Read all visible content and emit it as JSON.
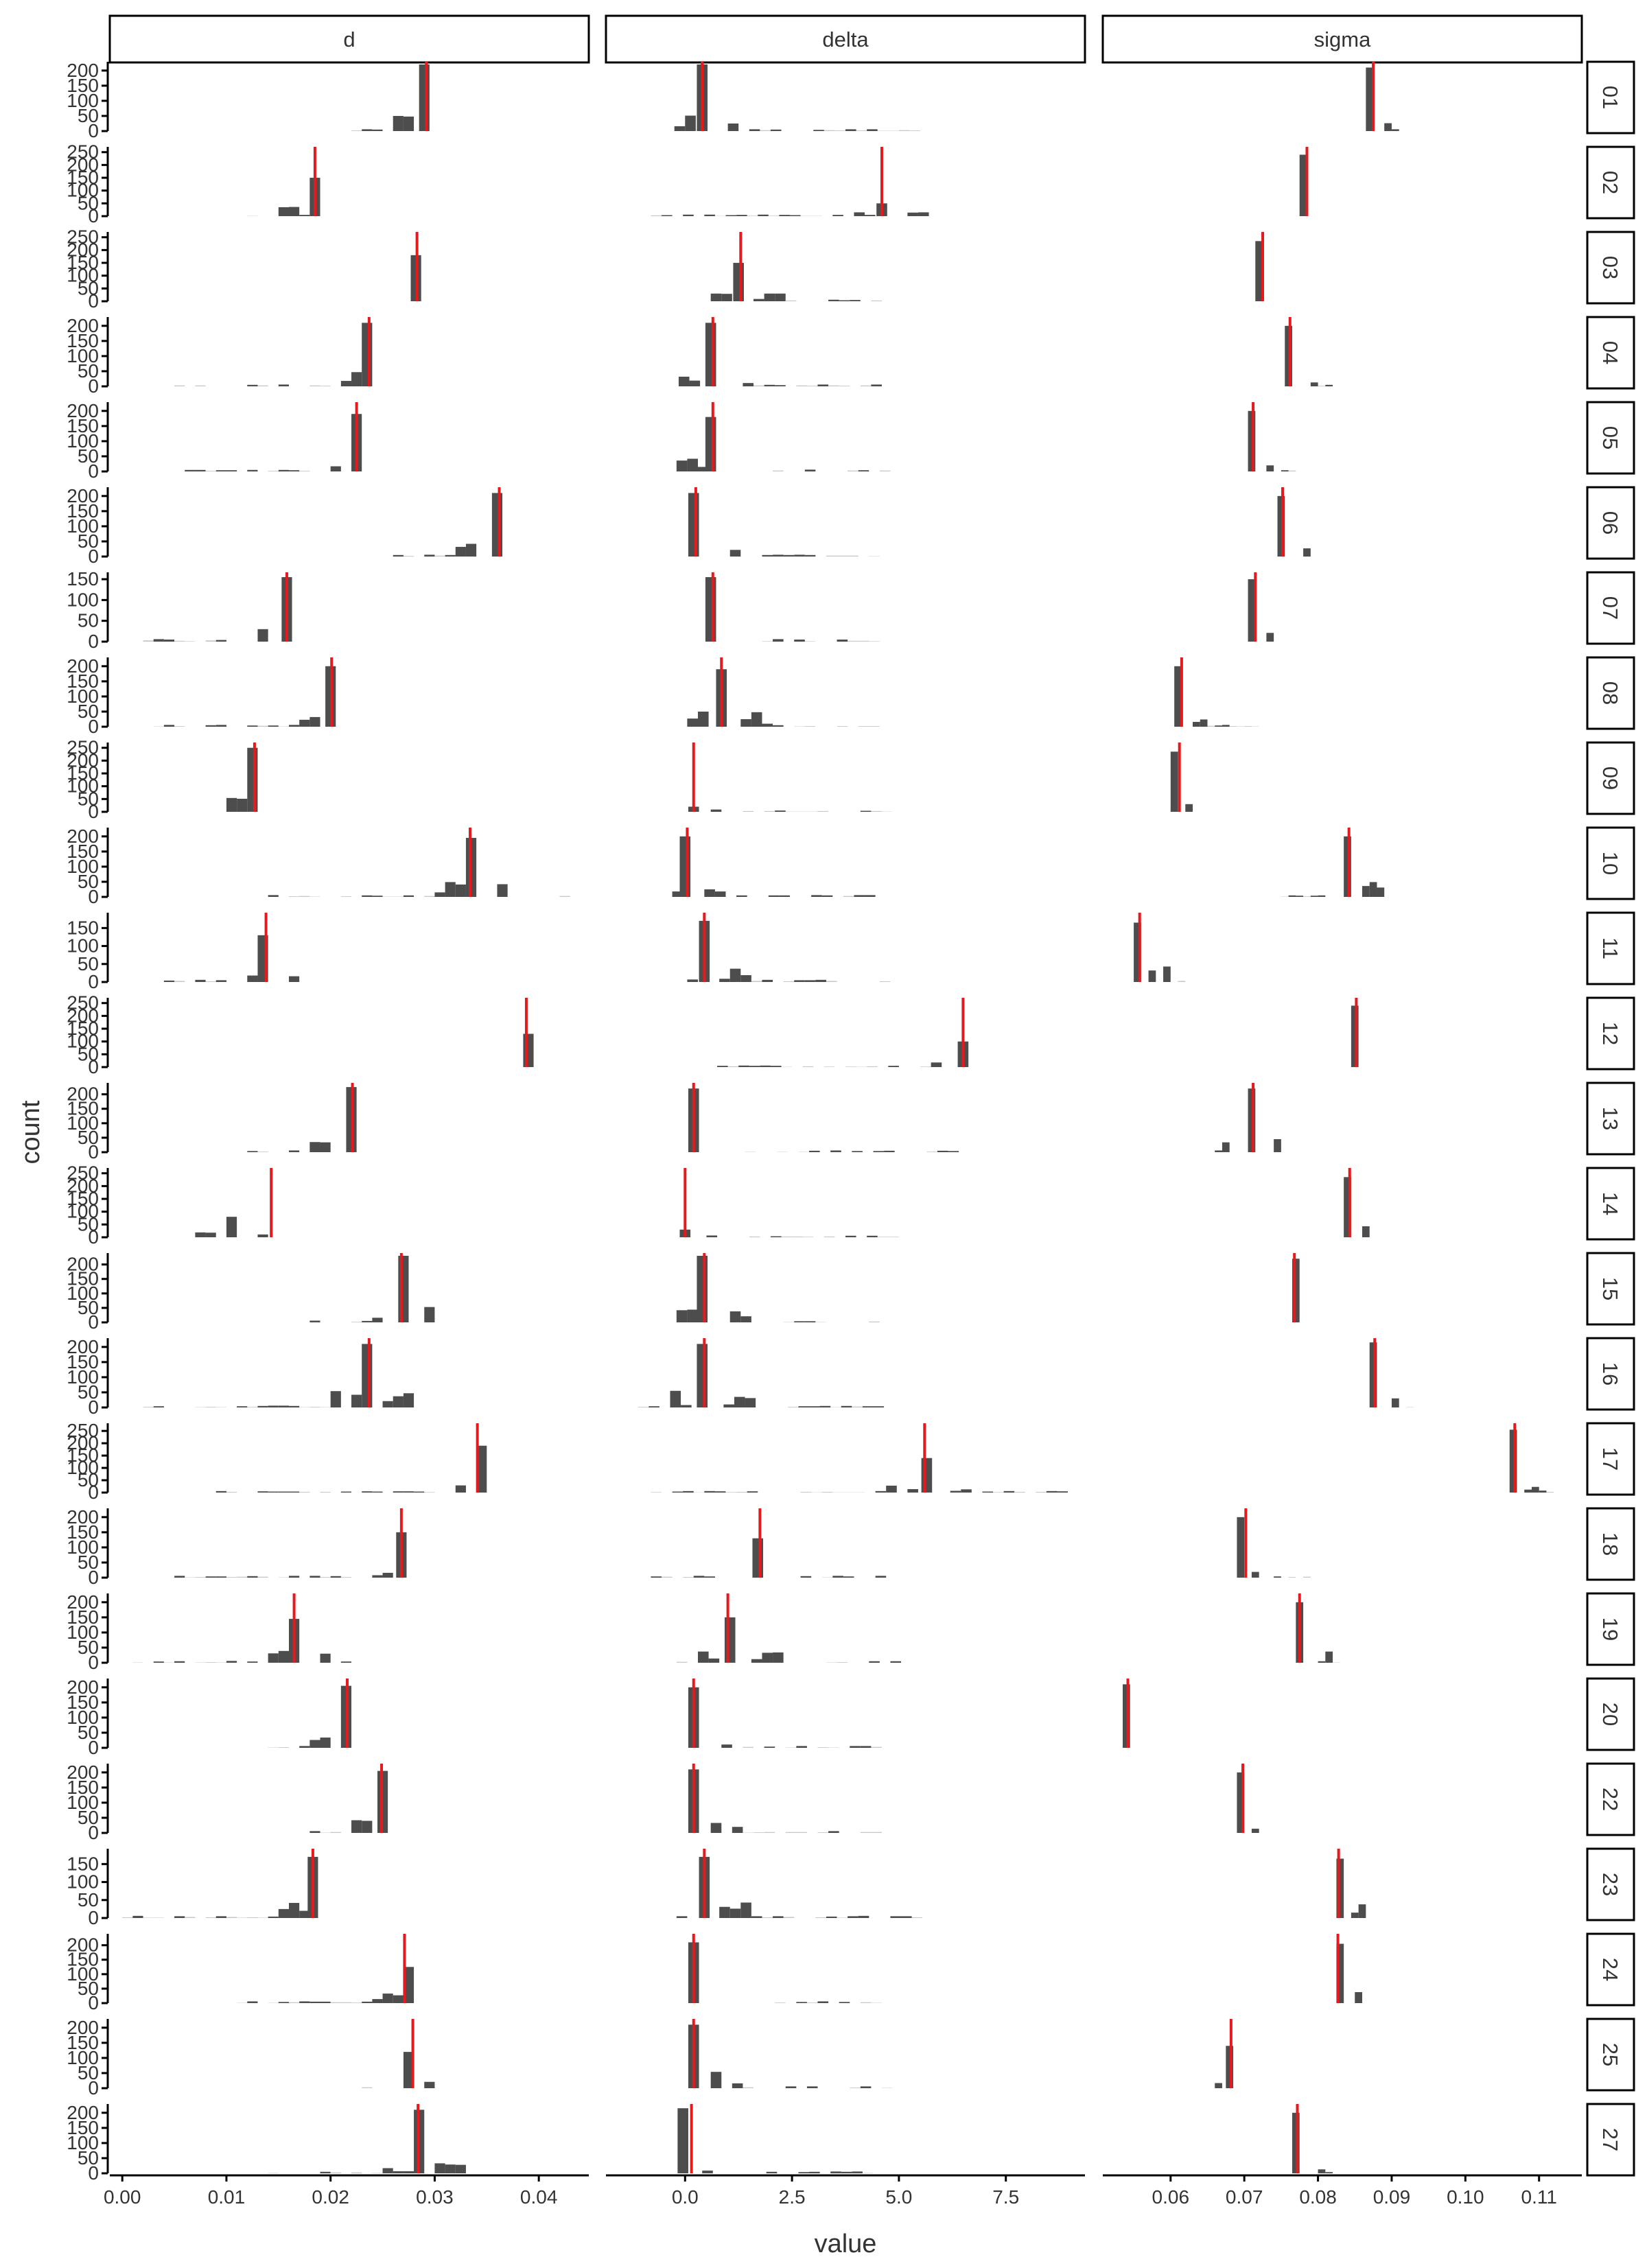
{
  "chart_data": {
    "type": "histogram-facet",
    "xlabel": "value",
    "ylabel": "count",
    "columns": [
      {
        "name": "d",
        "xlim": [
          -0.0012,
          0.0448
        ],
        "ticks": [
          0.0,
          0.01,
          0.02,
          0.03,
          0.04
        ],
        "tick_labels": [
          "0.00",
          "0.01",
          "0.02",
          "0.03",
          "0.04"
        ],
        "bin": 0.001
      },
      {
        "name": "delta",
        "xlim": [
          -1.85,
          9.35
        ],
        "ticks": [
          0.0,
          2.5,
          5.0,
          7.5
        ],
        "tick_labels": [
          "0.0",
          "2.5",
          "5.0",
          "7.5"
        ],
        "bin": 0.25
      },
      {
        "name": "sigma",
        "xlim": [
          0.0508,
          0.1158
        ],
        "ticks": [
          0.06,
          0.07,
          0.08,
          0.09,
          0.1,
          0.11
        ],
        "tick_labels": [
          "0.06",
          "0.07",
          "0.08",
          "0.09",
          "0.10",
          "0.11"
        ],
        "bin": 0.001
      }
    ],
    "colors": {
      "bars": "#4d4d4d",
      "reference_line": "#e41a1c",
      "strip_fill": "#ffffff",
      "strip_border": "#000000",
      "axis": "#000000"
    },
    "rows": [
      {
        "label": "01",
        "ymax": 220,
        "yticks": [
          0,
          50,
          100,
          150,
          200
        ],
        "ref": [
          0.0292,
          0.4,
          0.0875
        ],
        "peaks": [
          [
            0.029,
            220
          ],
          [
            0.4,
            220
          ],
          [
            0.087,
            210
          ]
        ],
        "spread": [
          [
            0.022,
            0.031
          ],
          [
            -0.5,
            5.5
          ],
          [
            0.086,
            0.093
          ]
        ]
      },
      {
        "label": "02",
        "ymax": 260,
        "yticks": [
          0,
          50,
          100,
          150,
          200,
          250
        ],
        "ref": [
          0.0185,
          4.6,
          0.0785
        ],
        "peaks": [
          [
            0.0185,
            150
          ],
          [
            4.6,
            50
          ],
          [
            0.078,
            240
          ]
        ],
        "spread": [
          [
            0.012,
            0.02
          ],
          [
            -0.8,
            6.0
          ],
          [
            0.077,
            0.08
          ]
        ]
      },
      {
        "label": "03",
        "ymax": 260,
        "yticks": [
          0,
          50,
          100,
          150,
          200,
          250
        ],
        "ref": [
          0.0283,
          1.3,
          0.0725
        ],
        "peaks": [
          [
            0.0282,
            180
          ],
          [
            1.25,
            150
          ],
          [
            0.072,
            235
          ]
        ],
        "spread": [
          [
            0.025,
            0.03
          ],
          [
            0.6,
            4.7
          ],
          [
            0.071,
            0.074
          ]
        ]
      },
      {
        "label": "04",
        "ymax": 220,
        "yticks": [
          0,
          50,
          100,
          150,
          200
        ],
        "ref": [
          0.0237,
          0.65,
          0.0762
        ],
        "peaks": [
          [
            0.0235,
            210
          ],
          [
            0.6,
            210
          ],
          [
            0.076,
            200
          ]
        ],
        "spread": [
          [
            0.004,
            0.025
          ],
          [
            -0.4,
            4.7
          ],
          [
            0.075,
            0.082
          ]
        ]
      },
      {
        "label": "05",
        "ymax": 220,
        "yticks": [
          0,
          50,
          100,
          150,
          200
        ],
        "ref": [
          0.0225,
          0.65,
          0.0712
        ],
        "peaks": [
          [
            0.0225,
            190
          ],
          [
            0.6,
            180
          ],
          [
            0.071,
            200
          ]
        ],
        "spread": [
          [
            0.006,
            0.024
          ],
          [
            -0.2,
            4.7
          ],
          [
            0.07,
            0.077
          ]
        ]
      },
      {
        "label": "06",
        "ymax": 220,
        "yticks": [
          0,
          50,
          100,
          150,
          200
        ],
        "ref": [
          0.0362,
          0.25,
          0.0752
        ],
        "peaks": [
          [
            0.036,
            210
          ],
          [
            0.2,
            210
          ],
          [
            0.075,
            200
          ]
        ],
        "spread": [
          [
            0.025,
            0.038
          ],
          [
            -0.2,
            4.5
          ],
          [
            0.074,
            0.08
          ]
        ]
      },
      {
        "label": "07",
        "ymax": 160,
        "yticks": [
          0,
          50,
          100,
          150
        ],
        "ref": [
          0.0158,
          0.65,
          0.0715
        ],
        "peaks": [
          [
            0.0158,
            155
          ],
          [
            0.6,
            155
          ],
          [
            0.071,
            150
          ]
        ],
        "spread": [
          [
            0.002,
            0.017
          ],
          [
            -0.2,
            5.0
          ],
          [
            0.07,
            0.076
          ]
        ]
      },
      {
        "label": "08",
        "ymax": 220,
        "yticks": [
          0,
          50,
          100,
          150,
          200
        ],
        "ref": [
          0.0201,
          0.85,
          0.0615
        ],
        "peaks": [
          [
            0.02,
            200
          ],
          [
            0.85,
            190
          ],
          [
            0.061,
            200
          ]
        ],
        "spread": [
          [
            0.003,
            0.021
          ],
          [
            -0.2,
            4.5
          ],
          [
            0.061,
            0.072
          ]
        ]
      },
      {
        "label": "09",
        "ymax": 260,
        "yticks": [
          0,
          50,
          100,
          150,
          200,
          250
        ],
        "ref": [
          0.0127,
          0.2,
          0.0612
        ],
        "peaks": [
          [
            0.0125,
            250
          ],
          [
            0.2,
            20
          ],
          [
            0.0605,
            235
          ]
        ],
        "spread": [
          [
            0.01,
            0.014
          ],
          [
            0.1,
            4.9
          ],
          [
            0.06,
            0.063
          ]
        ]
      },
      {
        "label": "10",
        "ymax": 220,
        "yticks": [
          0,
          50,
          100,
          150,
          200
        ],
        "ref": [
          0.0334,
          0.05,
          0.0842
        ],
        "peaks": [
          [
            0.0335,
            195
          ],
          [
            0.0,
            200
          ],
          [
            0.084,
            200
          ]
        ],
        "spread": [
          [
            0.013,
            0.043
          ],
          [
            -0.3,
            4.8
          ],
          [
            0.075,
            0.089
          ]
        ]
      },
      {
        "label": "11",
        "ymax": 185,
        "yticks": [
          0,
          50,
          100,
          150
        ],
        "ref": [
          0.0138,
          0.45,
          0.0558
        ],
        "peaks": [
          [
            0.0135,
            130
          ],
          [
            0.45,
            170
          ],
          [
            0.0555,
            165
          ]
        ],
        "spread": [
          [
            0.003,
            0.017
          ],
          [
            -0.2,
            4.9
          ],
          [
            0.055,
            0.063
          ]
        ]
      },
      {
        "label": "12",
        "ymax": 260,
        "yticks": [
          0,
          50,
          100,
          150,
          200,
          250
        ],
        "ref": [
          0.0388,
          6.5,
          0.0852
        ],
        "peaks": [
          [
            0.039,
            130
          ],
          [
            6.5,
            100
          ],
          [
            0.085,
            240
          ]
        ],
        "spread": [
          [
            0.038,
            0.041
          ],
          [
            0.5,
            6.8
          ],
          [
            0.085,
            0.087
          ]
        ]
      },
      {
        "label": "13",
        "ymax": 230,
        "yticks": [
          0,
          50,
          100,
          150,
          200
        ],
        "ref": [
          0.0221,
          0.2,
          0.0712
        ],
        "peaks": [
          [
            0.022,
            225
          ],
          [
            0.2,
            220
          ],
          [
            0.071,
            220
          ]
        ],
        "spread": [
          [
            0.012,
            0.023
          ],
          [
            1.4,
            6.4
          ],
          [
            0.066,
            0.075
          ]
        ]
      },
      {
        "label": "14",
        "ymax": 260,
        "yticks": [
          0,
          50,
          100,
          150,
          200,
          250
        ],
        "ref": [
          0.0143,
          0.0,
          0.0843
        ],
        "peaks": [
          [
            0.0105,
            80
          ],
          [
            0.0,
            30
          ],
          [
            0.084,
            235
          ]
        ],
        "spread": [
          [
            0.003,
            0.015
          ],
          [
            0.0,
            5.0
          ],
          [
            0.084,
            0.085
          ]
        ]
      },
      {
        "label": "15",
        "ymax": 230,
        "yticks": [
          0,
          50,
          100,
          150,
          200
        ],
        "ref": [
          0.0268,
          0.45,
          0.0768
        ],
        "peaks": [
          [
            0.027,
            230
          ],
          [
            0.4,
            230
          ],
          [
            0.077,
            220
          ]
        ],
        "spread": [
          [
            0.017,
            0.03
          ],
          [
            -0.2,
            4.7
          ],
          [
            0.076,
            0.079
          ]
        ]
      },
      {
        "label": "16",
        "ymax": 220,
        "yticks": [
          0,
          50,
          100,
          150,
          200
        ],
        "ref": [
          0.0237,
          0.45,
          0.0877
        ],
        "peaks": [
          [
            0.0235,
            210
          ],
          [
            0.4,
            210
          ],
          [
            0.0875,
            215
          ]
        ],
        "spread": [
          [
            0.002,
            0.028
          ],
          [
            -1.1,
            5.0
          ],
          [
            0.087,
            0.093
          ]
        ]
      },
      {
        "label": "17",
        "ymax": 270,
        "yticks": [
          0,
          50,
          100,
          150,
          200,
          250
        ],
        "ref": [
          0.0341,
          5.6,
          0.1067
        ],
        "peaks": [
          [
            0.0345,
            190
          ],
          [
            5.65,
            140
          ],
          [
            0.1065,
            255
          ]
        ],
        "spread": [
          [
            0.009,
            0.037
          ],
          [
            -0.8,
            9.0
          ],
          [
            0.106,
            0.112
          ]
        ]
      },
      {
        "label": "18",
        "ymax": 220,
        "yticks": [
          0,
          50,
          100,
          150,
          200
        ],
        "ref": [
          0.0268,
          1.75,
          0.0702
        ],
        "peaks": [
          [
            0.0268,
            150
          ],
          [
            1.7,
            130
          ],
          [
            0.0695,
            200
          ]
        ],
        "spread": [
          [
            0.005,
            0.029
          ],
          [
            -0.8,
            4.7
          ],
          [
            0.069,
            0.079
          ]
        ]
      },
      {
        "label": "19",
        "ymax": 220,
        "yticks": [
          0,
          50,
          100,
          150,
          200
        ],
        "ref": [
          0.0165,
          1.0,
          0.0775
        ],
        "peaks": [
          [
            0.0165,
            145
          ],
          [
            1.05,
            150
          ],
          [
            0.0775,
            200
          ]
        ],
        "spread": [
          [
            0.001,
            0.022
          ],
          [
            -0.2,
            5.1
          ],
          [
            0.077,
            0.083
          ]
        ]
      },
      {
        "label": "20",
        "ymax": 220,
        "yticks": [
          0,
          50,
          100,
          150,
          200
        ],
        "ref": [
          0.0216,
          0.2,
          0.0542
        ],
        "peaks": [
          [
            0.0215,
            205
          ],
          [
            0.2,
            200
          ],
          [
            0.054,
            210
          ]
        ],
        "spread": [
          [
            0.014,
            0.022
          ],
          [
            0.1,
            4.5
          ],
          [
            0.054,
            0.057
          ]
        ]
      },
      {
        "label": "22",
        "ymax": 220,
        "yticks": [
          0,
          50,
          100,
          150,
          200
        ],
        "ref": [
          0.0249,
          0.2,
          0.0698
        ],
        "peaks": [
          [
            0.025,
            205
          ],
          [
            0.2,
            210
          ],
          [
            0.0695,
            200
          ]
        ],
        "spread": [
          [
            0.017,
            0.029
          ],
          [
            0.1,
            4.9
          ],
          [
            0.069,
            0.072
          ]
        ]
      },
      {
        "label": "23",
        "ymax": 185,
        "yticks": [
          0,
          50,
          100,
          150
        ],
        "ref": [
          0.0183,
          0.45,
          0.0828
        ],
        "peaks": [
          [
            0.0183,
            170
          ],
          [
            0.45,
            170
          ],
          [
            0.083,
            165
          ]
        ],
        "spread": [
          [
            0.0,
            0.019
          ],
          [
            -0.2,
            6.3
          ],
          [
            0.0825,
            0.087
          ]
        ]
      },
      {
        "label": "24",
        "ymax": 230,
        "yticks": [
          0,
          50,
          100,
          150,
          200
        ],
        "ref": [
          0.0271,
          0.2,
          0.0827
        ],
        "peaks": [
          [
            0.0275,
            125
          ],
          [
            0.2,
            210
          ],
          [
            0.083,
            205
          ]
        ],
        "spread": [
          [
            0.011,
            0.029
          ],
          [
            0.1,
            4.5
          ],
          [
            0.082,
            0.086
          ]
        ]
      },
      {
        "label": "25",
        "ymax": 220,
        "yticks": [
          0,
          50,
          100,
          150,
          200
        ],
        "ref": [
          0.0279,
          0.2,
          0.0682
        ],
        "peaks": [
          [
            0.0275,
            120
          ],
          [
            0.2,
            210
          ],
          [
            0.068,
            140
          ]
        ],
        "spread": [
          [
            0.022,
            0.03
          ],
          [
            0.1,
            4.9
          ],
          [
            0.066,
            0.07
          ]
        ]
      },
      {
        "label": "27",
        "ymax": 220,
        "yticks": [
          0,
          50,
          100,
          150,
          200
        ],
        "ref": [
          0.0284,
          0.15,
          0.0772
        ],
        "peaks": [
          [
            0.0285,
            210
          ],
          [
            -0.05,
            215
          ],
          [
            0.077,
            200
          ]
        ],
        "spread": [
          [
            0.013,
            0.033
          ],
          [
            -0.1,
            4.7
          ],
          [
            0.077,
            0.082
          ]
        ]
      }
    ]
  }
}
